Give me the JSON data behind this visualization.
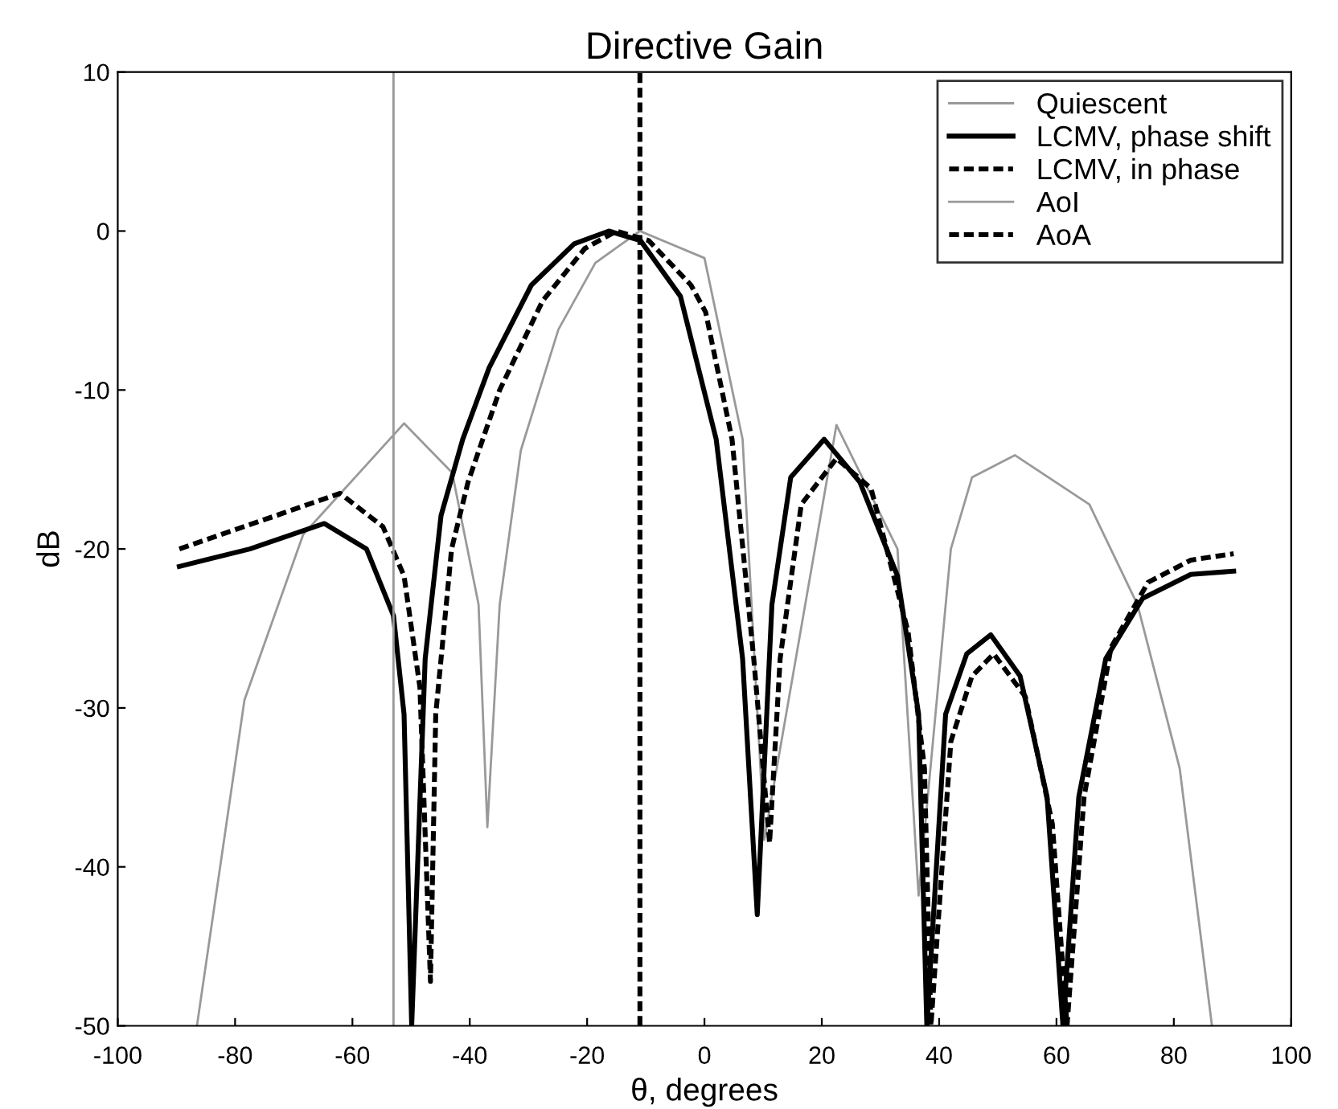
{
  "chart_data": {
    "type": "line",
    "title": "Directive Gain",
    "xlabel": "θ, degrees",
    "ylabel": "dB",
    "xlim": [
      -100,
      100
    ],
    "xticks": [
      -100,
      -80,
      -60,
      -40,
      -20,
      0,
      20,
      40,
      60,
      80,
      100
    ],
    "ylim": [
      -50,
      10
    ],
    "yticks": [
      -50,
      -40,
      -30,
      -20,
      -10,
      0,
      10
    ],
    "grid": false,
    "legend": "top right",
    "marker": "none",
    "series": [
      {
        "name": "Quiescent",
        "color": "#999999",
        "line_style": "solid",
        "x": [
          -86.5,
          -78.4,
          -68.4,
          -51.2,
          -43,
          -38.5,
          -37,
          -34.9,
          -31.3,
          -24.9,
          -18.6,
          -11,
          0,
          6.5,
          10.2,
          22.5,
          32.9,
          36.5,
          42,
          45.6,
          52.9,
          65.6,
          73.8,
          81,
          86.5
        ],
        "values": [
          -50,
          -29.5,
          -19.1,
          -12.1,
          -15.2,
          -23.5,
          -37.5,
          -23.5,
          -13.8,
          -6.2,
          -2,
          0,
          -1.7,
          -13.1,
          -38.3,
          -12.2,
          -20,
          -41.8,
          -20,
          -15.5,
          -14.1,
          -17.2,
          -23.5,
          -33.8,
          -50
        ]
      },
      {
        "name": "LCMV, phase shift",
        "color": "#000000",
        "line_style": "solid",
        "x": [
          -89.5,
          -77.5,
          -64.8,
          -57.6,
          -53,
          -51.2,
          -49.9,
          -47.6,
          -44.9,
          -41.2,
          -36.7,
          -29.5,
          -22.2,
          -16.3,
          -10.9,
          -4.1,
          2,
          6.5,
          9,
          11.5,
          14.7,
          20.4,
          26.5,
          32.9,
          36.5,
          37.9,
          41.1,
          44.7,
          48.8,
          53.8,
          58.4,
          61.1,
          63.8,
          68.4,
          74.7,
          82.9,
          90.2
        ],
        "values": [
          -21.1,
          -20,
          -18.4,
          -20,
          -24.2,
          -30.4,
          -50,
          -26.9,
          -17.9,
          -13.1,
          -8.6,
          -3.4,
          -0.8,
          0,
          -0.6,
          -4.1,
          -13.1,
          -26.9,
          -43,
          -23.5,
          -15.5,
          -13.1,
          -15.8,
          -21.7,
          -30.4,
          -50,
          -30.4,
          -26.6,
          -25.4,
          -28,
          -35.6,
          -50,
          -35.6,
          -26.9,
          -23.1,
          -21.6,
          -21.4
        ]
      },
      {
        "name": "LCMV, in phase",
        "color": "#000000",
        "line_style": "dashed",
        "x": [
          -89.5,
          -73,
          -62.1,
          -54.8,
          -51.2,
          -48.5,
          -46.7,
          -45.8,
          -43.1,
          -40.3,
          -34.9,
          -27.6,
          -20.4,
          -15,
          -9.5,
          -2.3,
          0.2,
          4.7,
          8.4,
          11.1,
          12.9,
          16.5,
          22.5,
          28.4,
          34.7,
          37.5,
          38.6,
          42,
          45.6,
          49.3,
          54.7,
          59.3,
          61.8,
          64.7,
          69.3,
          75.6,
          82.9,
          90.2
        ],
        "values": [
          -20,
          -17.9,
          -16.5,
          -18.6,
          -21.7,
          -28.7,
          -47.2,
          -30.4,
          -20,
          -15.8,
          -10,
          -4.4,
          -1.1,
          0,
          -0.6,
          -3.4,
          -5.1,
          -13.1,
          -26.9,
          -38.5,
          -26.9,
          -17.2,
          -14.3,
          -16.2,
          -25.2,
          -33.8,
          -50,
          -32.1,
          -28,
          -26.6,
          -29.3,
          -37.3,
          -50,
          -35.6,
          -26.2,
          -22.1,
          -20.7,
          -20.3
        ]
      },
      {
        "name": "AoI",
        "color": "#999999",
        "line_style": "solid",
        "x": [
          -53,
          -53
        ],
        "values": [
          -50,
          10
        ]
      },
      {
        "name": "AoA",
        "color": "#000000",
        "line_style": "dashed",
        "x": [
          -11,
          -11
        ],
        "values": [
          -50,
          10
        ]
      }
    ]
  }
}
